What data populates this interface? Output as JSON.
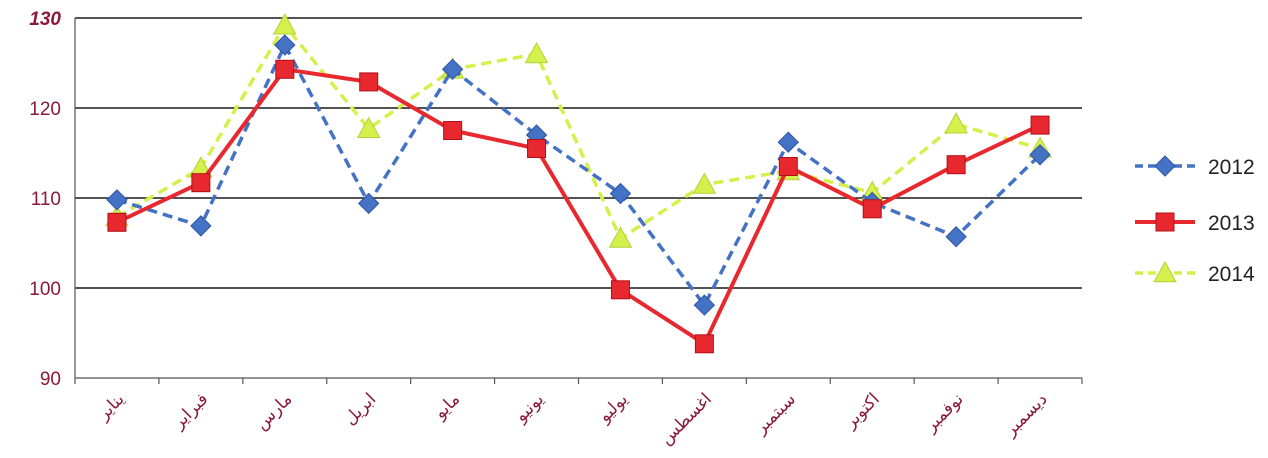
{
  "chart_data": {
    "type": "line",
    "title": "",
    "xlabel": "",
    "ylabel": "",
    "ylim": [
      90,
      130
    ],
    "yticks": [
      "90",
      "100",
      "110",
      "120",
      "130"
    ],
    "grid": true,
    "legend_position": "right",
    "categories": [
      "يناير",
      "فبراير",
      "مارس",
      "ابريل",
      "مايو",
      "يونيو",
      "يوليو",
      "اغسطس",
      "سبتمبر",
      "اكتوبر",
      "نوفمبر",
      "ديسمبر"
    ],
    "series": [
      {
        "name": "2012",
        "color": "#4472c4",
        "marker": "diamond",
        "line": "dashed",
        "values": [
          109.8,
          106.9,
          127.0,
          109.4,
          124.3,
          117.0,
          110.5,
          98.1,
          116.2,
          109.5,
          105.7,
          114.8
        ]
      },
      {
        "name": "2013",
        "color": "#e8282f",
        "marker": "square",
        "line": "solid",
        "values": [
          107.3,
          111.7,
          124.3,
          122.9,
          117.5,
          115.5,
          99.8,
          93.8,
          113.5,
          108.8,
          113.7,
          118.1
        ]
      },
      {
        "name": "2014",
        "color": "#d4f04a",
        "marker": "triangle",
        "line": "dashed",
        "values": [
          107.9,
          113.3,
          129.2,
          117.7,
          124.3,
          126.0,
          105.5,
          111.5,
          113.0,
          110.6,
          118.2,
          115.5
        ]
      }
    ]
  }
}
